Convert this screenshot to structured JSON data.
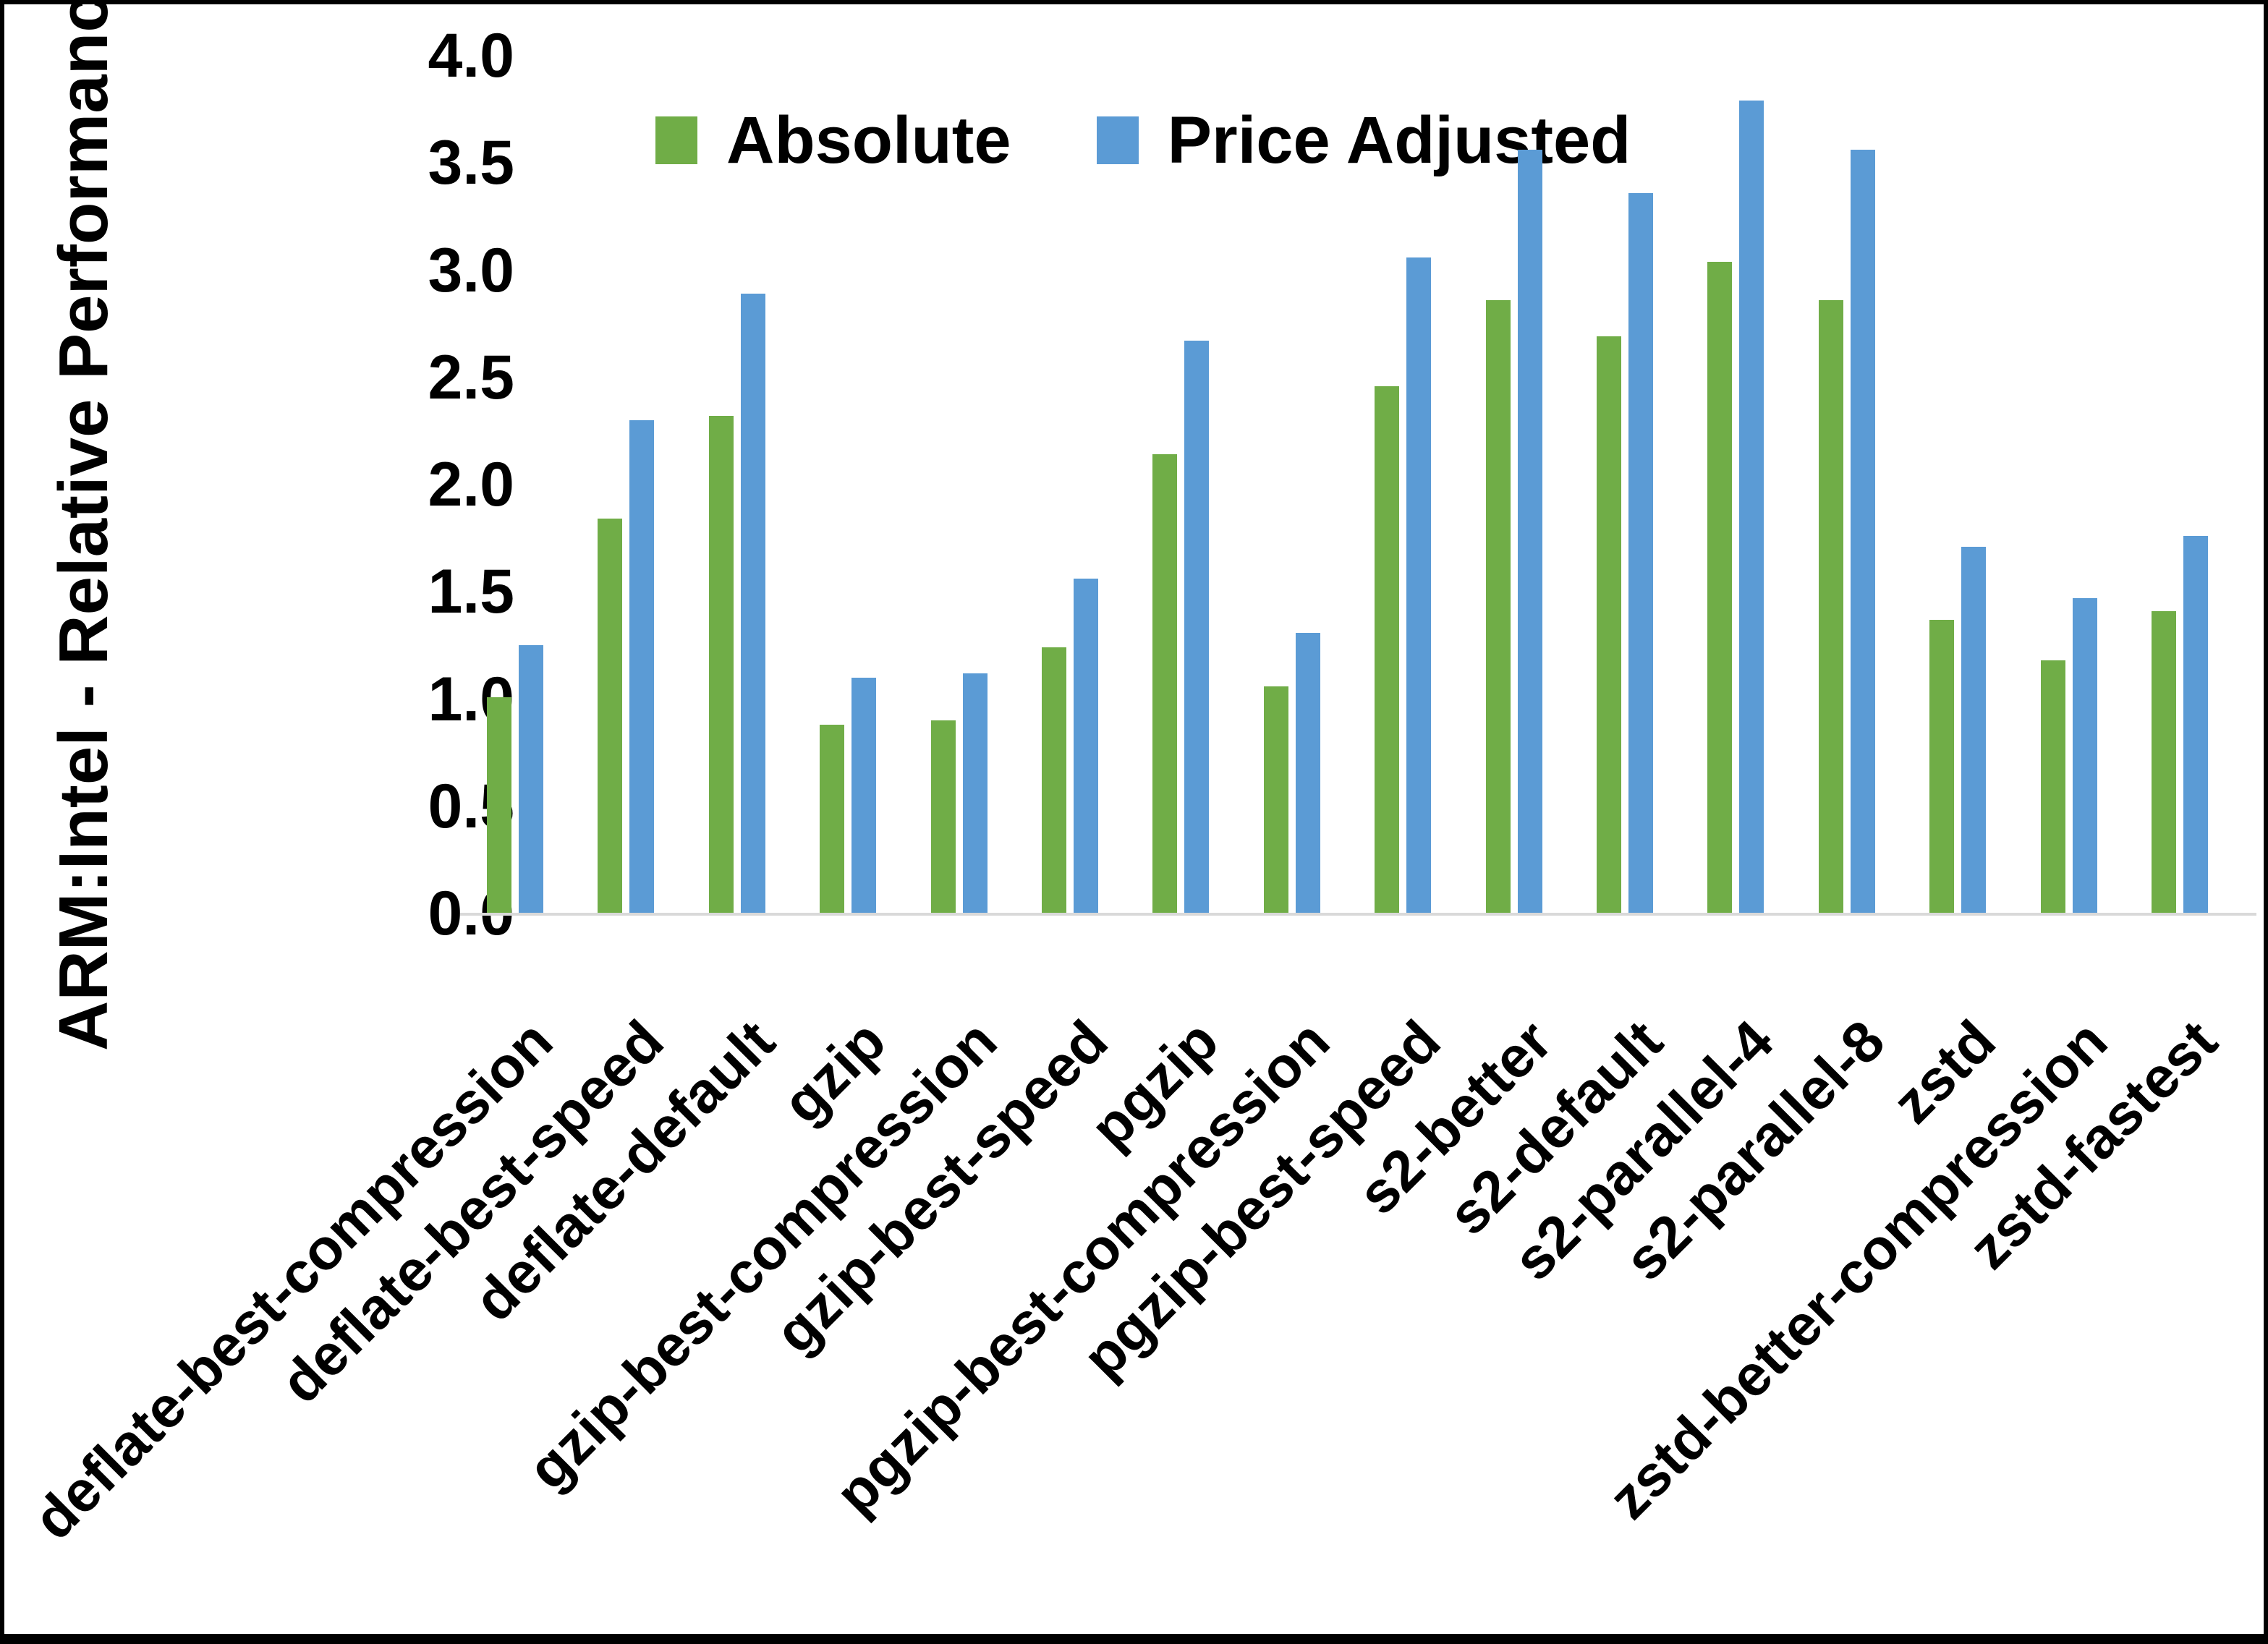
{
  "chart_data": {
    "type": "bar",
    "title": "",
    "xlabel": "",
    "ylabel": "ARM:Intel - Relative Performance",
    "ylim": [
      0.0,
      4.0
    ],
    "ytick_step": 0.5,
    "ytick_labels": [
      "0.0",
      "0.5",
      "1.0",
      "1.5",
      "2.0",
      "2.5",
      "3.0",
      "3.5",
      "4.0"
    ],
    "grid": false,
    "legend_position": "top",
    "categories": [
      "deflate-best-compression",
      "deflate-best-speed",
      "deflate-default",
      "gzip",
      "gzip-best-compression",
      "gzip-best-speed",
      "pgzip",
      "pgzip-best-compression",
      "pgzip-best-speed",
      "s2-better",
      "s2-default",
      "s2-parallel-4",
      "s2-parallel-8",
      "zstd",
      "zstd-better-compression",
      "zstd-fastest"
    ],
    "series": [
      {
        "name": "Absolute",
        "color": "#70AD47",
        "values": [
          1.01,
          1.84,
          2.32,
          0.88,
          0.9,
          1.24,
          2.14,
          1.06,
          2.46,
          2.86,
          2.69,
          3.04,
          2.86,
          1.37,
          1.18,
          1.41
        ]
      },
      {
        "name": "Price Adjusted",
        "color": "#5B9BD5",
        "values": [
          1.25,
          2.3,
          2.89,
          1.1,
          1.12,
          1.56,
          2.67,
          1.31,
          3.06,
          3.56,
          3.36,
          3.79,
          3.56,
          1.71,
          1.47,
          1.76
        ]
      }
    ]
  },
  "colors": {
    "background": "#FFFFFF",
    "frame_border": "#000000",
    "axis_line": "#D9D9D9",
    "text": "#000000"
  }
}
